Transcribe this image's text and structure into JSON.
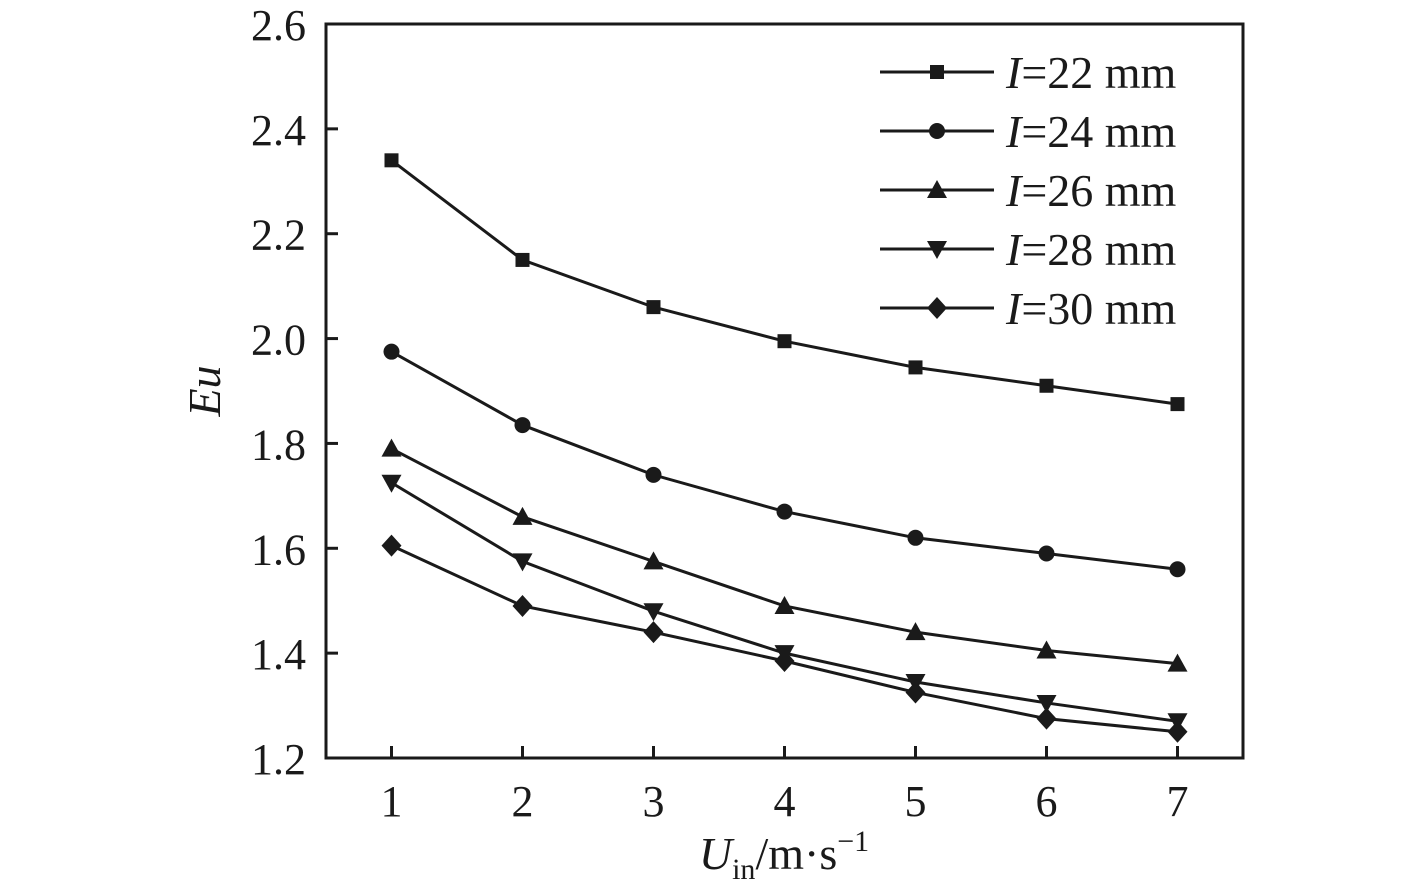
{
  "chart_data": {
    "type": "line",
    "x": [
      1,
      2,
      3,
      4,
      5,
      6,
      7
    ],
    "xlim": [
      0.5,
      7.5
    ],
    "ylim": [
      1.2,
      2.6
    ],
    "xticks": [
      "1",
      "2",
      "3",
      "4",
      "5",
      "6",
      "7"
    ],
    "yticks": [
      "1.2",
      "1.4",
      "1.6",
      "1.8",
      "2.0",
      "2.2",
      "2.4",
      "2.6"
    ],
    "xlabel": {
      "main": "U",
      "sub": "in",
      "rest": "/m·s",
      "sup": "−1"
    },
    "ylabel": "Eu",
    "grid": false,
    "legend_position": "top-right",
    "series": [
      {
        "name": {
          "var": "I",
          "rest": "=22 mm"
        },
        "marker": "square",
        "values": [
          2.34,
          2.15,
          2.06,
          1.995,
          1.945,
          1.91,
          1.875
        ]
      },
      {
        "name": {
          "var": "I",
          "rest": "=24 mm"
        },
        "marker": "circle",
        "values": [
          1.975,
          1.835,
          1.74,
          1.67,
          1.62,
          1.59,
          1.56
        ]
      },
      {
        "name": {
          "var": "I",
          "rest": "=26 mm"
        },
        "marker": "triangle-up",
        "values": [
          1.79,
          1.66,
          1.575,
          1.49,
          1.44,
          1.405,
          1.38
        ]
      },
      {
        "name": {
          "var": "I",
          "rest": "=28 mm"
        },
        "marker": "triangle-down",
        "values": [
          1.725,
          1.575,
          1.48,
          1.4,
          1.345,
          1.305,
          1.27
        ]
      },
      {
        "name": {
          "var": "I",
          "rest": "=30 mm"
        },
        "marker": "diamond",
        "values": [
          1.605,
          1.49,
          1.44,
          1.385,
          1.325,
          1.275,
          1.25
        ]
      }
    ]
  }
}
